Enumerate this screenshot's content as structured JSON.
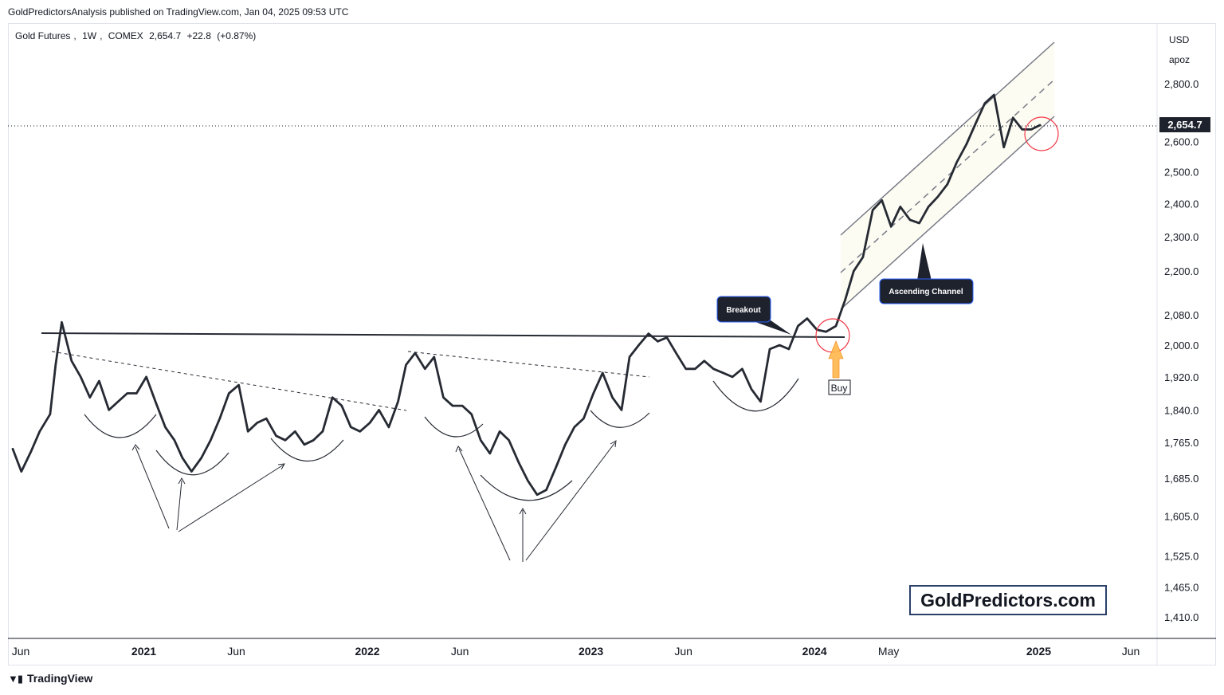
{
  "header": {
    "publisher_line": "GoldPredictorsAnalysis published on TradingView.com, Jan 04, 2025 09:53 UTC"
  },
  "legend": {
    "symbol": "Gold Futures",
    "interval": "1W",
    "exchange": "COMEX",
    "last": "2,654.7",
    "change": "+22.8",
    "change_pct": "(+0.87%)"
  },
  "price_axis": {
    "currency": "USD",
    "mode": "apoz",
    "current_price_label": "2,654.7"
  },
  "annotations": {
    "breakout": "Breakout",
    "channel": "Ascending Channel",
    "buy": "Buy"
  },
  "watermark": {
    "brand": "GoldPredictors.com"
  },
  "footer": {
    "brand": "TradingView"
  },
  "colors": {
    "price_line": "#262a33",
    "label_bg": "#1e222d",
    "label_border": "#2962ff",
    "circle": "#f23645",
    "buy_arrow": "#ffb74d",
    "channel_fill": "#fdfcf3"
  },
  "chart_data": {
    "type": "line",
    "title": "Gold Futures, 1W, COMEX",
    "y_ticks": [
      "2,800.0",
      "2,600.0",
      "2,500.0",
      "2,400.0",
      "2,300.0",
      "2,200.0",
      "2,080.0",
      "2,000.0",
      "1,920.0",
      "1,840.0",
      "1,765.0",
      "1,685.0",
      "1,605.0",
      "1,525.0",
      "1,465.0",
      "1,410.0"
    ],
    "x_ticks": [
      {
        "label": "Jun",
        "bold": false
      },
      {
        "label": "2021",
        "bold": true
      },
      {
        "label": "Jun",
        "bold": false
      },
      {
        "label": "2022",
        "bold": true
      },
      {
        "label": "Jun",
        "bold": false
      },
      {
        "label": "2023",
        "bold": true
      },
      {
        "label": "Jun",
        "bold": false
      },
      {
        "label": "2024",
        "bold": true
      },
      {
        "label": "May",
        "bold": false
      },
      {
        "label": "2025",
        "bold": true
      },
      {
        "label": "Jun",
        "bold": false
      }
    ],
    "ylim": [
      1410,
      2800
    ],
    "last_price": 2654.7,
    "grid": false,
    "series": [
      {
        "x": [
          "2020-06-01",
          "2020-06-15",
          "2020-07-01",
          "2020-07-15",
          "2020-08-01",
          "2020-08-10",
          "2020-08-20",
          "2020-09-05",
          "2020-09-20",
          "2020-10-05",
          "2020-10-20",
          "2020-11-05",
          "2020-11-20",
          "2020-12-05",
          "2020-12-20",
          "2021-01-05",
          "2021-01-20",
          "2021-02-05",
          "2021-02-20",
          "2021-03-05",
          "2021-03-20",
          "2021-04-05",
          "2021-04-20",
          "2021-05-05",
          "2021-05-20",
          "2021-06-05",
          "2021-06-20",
          "2021-07-05",
          "2021-07-20",
          "2021-08-05",
          "2021-08-20",
          "2021-09-05",
          "2021-09-20",
          "2021-10-05",
          "2021-10-20",
          "2021-11-05",
          "2021-11-20",
          "2021-12-05",
          "2021-12-20",
          "2022-01-05",
          "2022-01-20",
          "2022-02-05",
          "2022-02-20",
          "2022-03-05",
          "2022-03-20",
          "2022-04-05",
          "2022-04-20",
          "2022-05-05",
          "2022-05-20",
          "2022-06-05",
          "2022-06-20",
          "2022-07-05",
          "2022-07-20",
          "2022-08-05",
          "2022-08-20",
          "2022-09-05",
          "2022-09-20",
          "2022-10-05",
          "2022-10-20",
          "2022-11-05",
          "2022-11-20",
          "2022-12-05",
          "2022-12-20",
          "2023-01-05",
          "2023-01-20",
          "2023-02-05",
          "2023-02-20",
          "2023-03-05",
          "2023-03-20",
          "2023-04-05",
          "2023-04-20",
          "2023-05-05",
          "2023-05-20",
          "2023-06-05",
          "2023-06-20",
          "2023-07-05",
          "2023-07-20",
          "2023-08-05",
          "2023-08-20",
          "2023-09-05",
          "2023-09-20",
          "2023-10-05",
          "2023-10-20",
          "2023-11-05",
          "2023-11-20",
          "2023-12-05",
          "2023-12-20",
          "2024-01-05",
          "2024-01-20",
          "2024-02-05",
          "2024-02-20",
          "2024-03-05",
          "2024-03-20",
          "2024-04-05",
          "2024-04-20",
          "2024-05-05",
          "2024-05-20",
          "2024-06-05",
          "2024-06-20",
          "2024-07-05",
          "2024-07-20",
          "2024-08-05",
          "2024-08-20",
          "2024-09-05",
          "2024-09-20",
          "2024-10-05",
          "2024-10-20",
          "2024-11-05",
          "2024-11-20",
          "2024-12-05",
          "2024-12-20",
          "2025-01-03"
        ],
        "values": [
          1750,
          1700,
          1745,
          1790,
          1830,
          1950,
          2060,
          1960,
          1920,
          1870,
          1910,
          1840,
          1860,
          1880,
          1880,
          1920,
          1860,
          1800,
          1770,
          1730,
          1700,
          1730,
          1770,
          1820,
          1880,
          1900,
          1790,
          1810,
          1820,
          1780,
          1770,
          1790,
          1760,
          1770,
          1790,
          1870,
          1850,
          1800,
          1790,
          1810,
          1840,
          1800,
          1860,
          1950,
          1980,
          1940,
          1970,
          1870,
          1850,
          1850,
          1830,
          1770,
          1740,
          1790,
          1770,
          1720,
          1680,
          1650,
          1660,
          1710,
          1760,
          1800,
          1820,
          1880,
          1930,
          1870,
          1840,
          1970,
          2000,
          2030,
          2010,
          2020,
          1980,
          1940,
          1940,
          1960,
          1940,
          1930,
          1920,
          1940,
          1890,
          1860,
          1990,
          2000,
          1990,
          2050,
          2070,
          2040,
          2035,
          2050,
          2120,
          2200,
          2240,
          2380,
          2410,
          2330,
          2390,
          2350,
          2340,
          2390,
          2420,
          2460,
          2530,
          2590,
          2660,
          2730,
          2760,
          2580,
          2680,
          2640,
          2640,
          2654.7
        ]
      }
    ]
  }
}
